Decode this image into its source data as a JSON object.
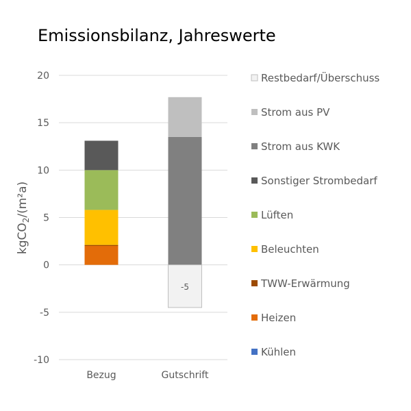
{
  "chart_data": {
    "type": "bar",
    "stacked": true,
    "title": "Emissionsbilanz, Jahreswerte",
    "ylabel": "kgCO2/(m²a)",
    "ylim": [
      -10,
      20
    ],
    "yticks": [
      20,
      15,
      10,
      5,
      0,
      -5,
      -10
    ],
    "grid": true,
    "legend_position": "right",
    "categories": [
      "Bezug",
      "Gutschrift"
    ],
    "series": [
      {
        "name": "Kühlen",
        "color": "#4472C4",
        "values": [
          0,
          0
        ]
      },
      {
        "name": "Heizen",
        "color": "#E36C09",
        "values": [
          2.0,
          0
        ]
      },
      {
        "name": "TWW-Erwärmung",
        "color": "#9C4A00",
        "values": [
          0.1,
          0
        ]
      },
      {
        "name": "Beleuchten",
        "color": "#FFC000",
        "values": [
          3.7,
          0
        ]
      },
      {
        "name": "Lüften",
        "color": "#9BBB59",
        "values": [
          4.2,
          0
        ]
      },
      {
        "name": "Sonstiger Strombedarf",
        "color": "#595959",
        "values": [
          3.1,
          0
        ]
      },
      {
        "name": "Strom aus KWK",
        "color": "#808080",
        "values": [
          0,
          13.5
        ]
      },
      {
        "name": "Strom aus PV",
        "color": "#BFBFBF",
        "values": [
          0,
          4.2
        ]
      },
      {
        "name": "Restbedarf/Überschuss",
        "color": "#F2F2F2",
        "values": [
          0,
          -4.5
        ]
      }
    ],
    "data_labels": [
      {
        "category": "Gutschrift",
        "series": "Restbedarf/Überschuss",
        "text": "-5"
      }
    ]
  }
}
